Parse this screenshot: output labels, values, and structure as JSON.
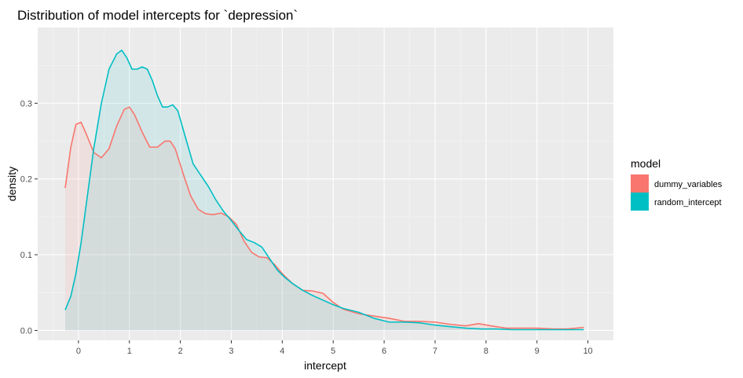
{
  "chart_data": {
    "type": "area",
    "title": "Distribution of model intercepts for `depression`",
    "xlabel": "intercept",
    "ylabel": "density",
    "xlim": [
      -0.8,
      10.5
    ],
    "ylim": [
      -0.013,
      0.4
    ],
    "x_ticks": [
      0,
      1,
      2,
      3,
      4,
      5,
      6,
      7,
      8,
      9,
      10
    ],
    "y_ticks": [
      0.0,
      0.1,
      0.2,
      0.3
    ],
    "y_tick_labels": [
      "0.0",
      "0.1",
      "0.2",
      "0.3"
    ],
    "grid": true,
    "legend": {
      "title": "model",
      "placement": "right"
    },
    "series": [
      {
        "name": "dummy_variables",
        "color": "#F8766D",
        "x": [
          -0.26,
          -0.15,
          -0.05,
          0.05,
          0.15,
          0.3,
          0.45,
          0.6,
          0.75,
          0.9,
          1.0,
          1.1,
          1.25,
          1.4,
          1.55,
          1.7,
          1.8,
          1.9,
          2.05,
          2.2,
          2.35,
          2.5,
          2.65,
          2.8,
          2.95,
          3.1,
          3.25,
          3.4,
          3.55,
          3.7,
          3.85,
          4.0,
          4.2,
          4.4,
          4.6,
          4.8,
          5.0,
          5.2,
          5.5,
          5.8,
          6.1,
          6.4,
          6.7,
          7.0,
          7.3,
          7.6,
          7.85,
          8.1,
          8.4,
          8.7,
          9.0,
          9.3,
          9.6,
          9.92
        ],
        "y": [
          0.188,
          0.242,
          0.272,
          0.275,
          0.26,
          0.235,
          0.228,
          0.24,
          0.27,
          0.292,
          0.295,
          0.285,
          0.262,
          0.242,
          0.242,
          0.25,
          0.25,
          0.24,
          0.208,
          0.178,
          0.16,
          0.154,
          0.153,
          0.155,
          0.15,
          0.14,
          0.118,
          0.103,
          0.097,
          0.096,
          0.087,
          0.075,
          0.062,
          0.053,
          0.052,
          0.049,
          0.037,
          0.028,
          0.022,
          0.019,
          0.016,
          0.012,
          0.012,
          0.011,
          0.008,
          0.006,
          0.009,
          0.006,
          0.003,
          0.003,
          0.003,
          0.002,
          0.002,
          0.004
        ]
      },
      {
        "name": "random_intercept",
        "color": "#00BFC4",
        "x": [
          -0.26,
          -0.15,
          -0.05,
          0.05,
          0.15,
          0.3,
          0.45,
          0.6,
          0.75,
          0.85,
          0.95,
          1.05,
          1.15,
          1.25,
          1.35,
          1.45,
          1.55,
          1.65,
          1.75,
          1.85,
          1.95,
          2.1,
          2.25,
          2.4,
          2.55,
          2.7,
          2.85,
          3.0,
          3.15,
          3.3,
          3.45,
          3.6,
          3.75,
          3.9,
          4.05,
          4.2,
          4.4,
          4.6,
          4.8,
          5.0,
          5.2,
          5.5,
          5.8,
          6.1,
          6.4,
          6.7,
          7.0,
          7.3,
          7.6,
          7.9,
          8.2,
          8.5,
          8.8,
          9.1,
          9.4,
          9.7,
          9.92
        ],
        "y": [
          0.027,
          0.045,
          0.075,
          0.115,
          0.165,
          0.24,
          0.3,
          0.345,
          0.365,
          0.37,
          0.36,
          0.345,
          0.345,
          0.348,
          0.345,
          0.33,
          0.31,
          0.295,
          0.295,
          0.298,
          0.29,
          0.255,
          0.22,
          0.205,
          0.19,
          0.172,
          0.157,
          0.145,
          0.132,
          0.12,
          0.116,
          0.11,
          0.095,
          0.08,
          0.07,
          0.062,
          0.053,
          0.046,
          0.04,
          0.034,
          0.029,
          0.024,
          0.016,
          0.011,
          0.011,
          0.01,
          0.007,
          0.005,
          0.003,
          0.002,
          0.002,
          0.001,
          0.001,
          0.001,
          0.001,
          0.001,
          0.001
        ]
      }
    ]
  }
}
